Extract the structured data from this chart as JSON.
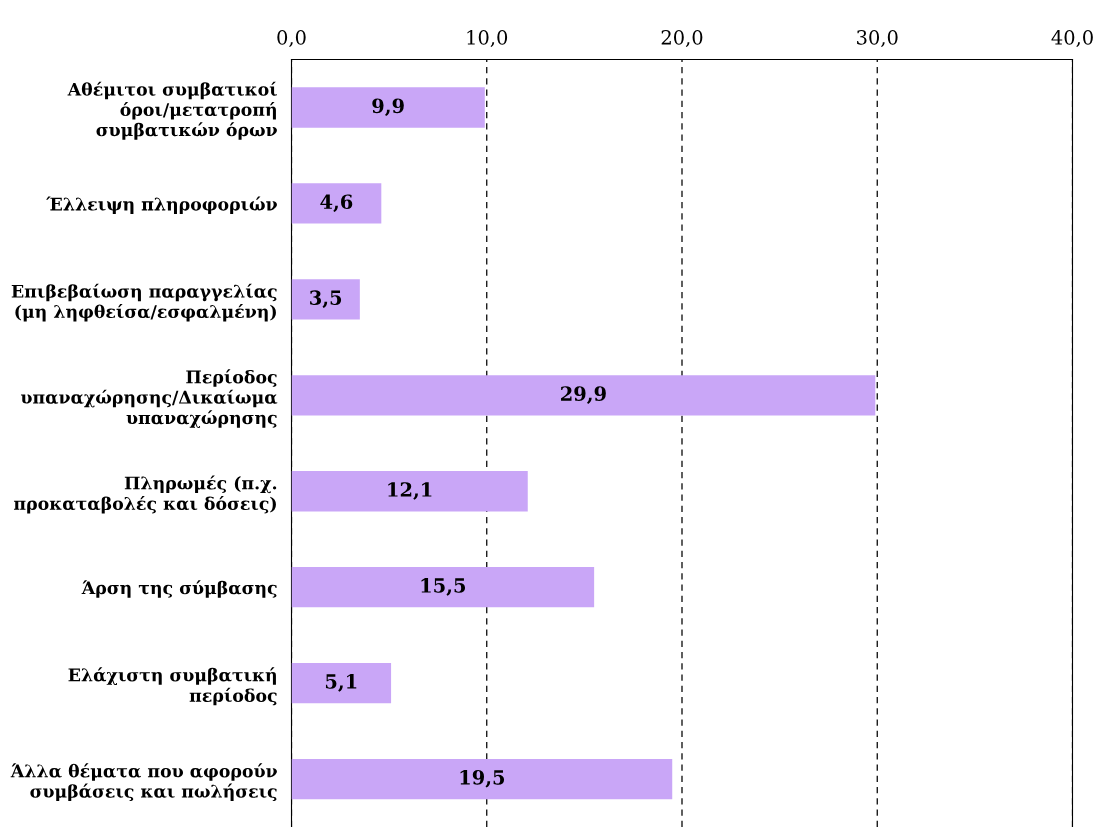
{
  "chart_data": {
    "type": "bar",
    "orientation": "horizontal",
    "categories": [
      "Αθέμιτοι συμβατικοί\nόροι/μετατροπή\nσυμβατικών όρων",
      "Έλλειψη πληροφοριών",
      "Επιβεβαίωση παραγγελίας\n(μη ληφθείσα/εσφαλμένη)",
      "Περίοδος\nυπαναχώρησης/Δικαίωμα\nυπαναχώρησης",
      "Πληρωμές (π.χ.\nπροκαταβολές και δόσεις)",
      "Άρση της σύμβασης",
      "Ελάχιστη συμβατική\nπερίοδος",
      "Άλλα θέματα που αφορούν\nσυμβάσεις και πωλήσεις"
    ],
    "values": [
      9.9,
      4.6,
      3.5,
      29.9,
      12.1,
      15.5,
      5.1,
      19.5
    ],
    "value_labels": [
      "9,9",
      "4,6",
      "3,5",
      "29,9",
      "12,1",
      "15,5",
      "5,1",
      "19,5"
    ],
    "color": "#c9a6f7",
    "xlim": [
      0,
      40
    ],
    "xticks": [
      {
        "value": 0,
        "label": "0,0"
      },
      {
        "value": 10,
        "label": "10,0"
      },
      {
        "value": 20,
        "label": "20,0"
      },
      {
        "value": 30,
        "label": "30,0"
      },
      {
        "value": 40,
        "label": "40,0"
      }
    ],
    "grid": "x"
  }
}
